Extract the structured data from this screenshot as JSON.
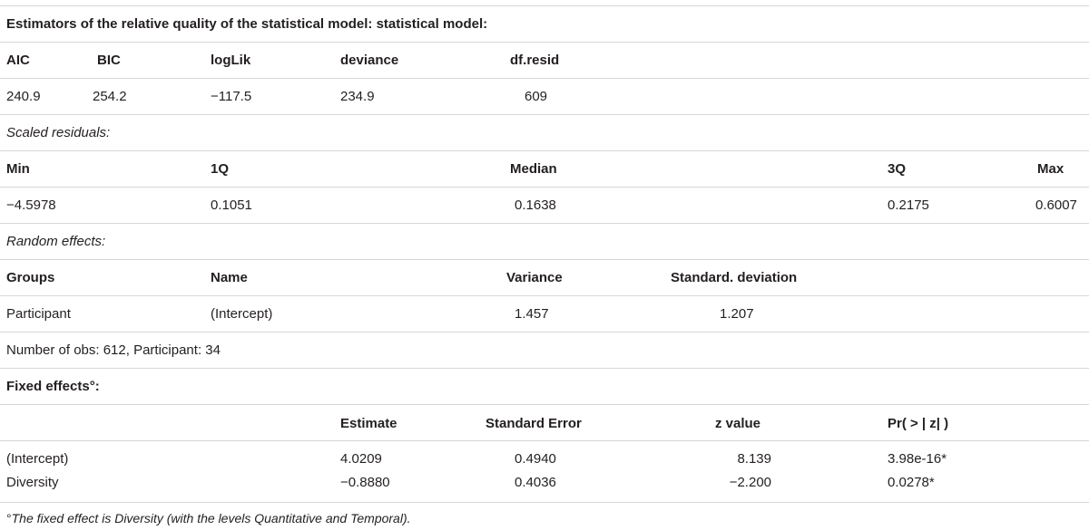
{
  "quality": {
    "title": "Estimators of the relative quality of the statistical model: statistical model:",
    "headers": [
      "AIC",
      "BIC",
      "logLik",
      "deviance",
      "df.resid"
    ],
    "values": [
      "240.9",
      "254.2",
      "−117.5",
      "234.9",
      "609"
    ]
  },
  "residuals": {
    "title": "Scaled residuals:",
    "headers": [
      "Min",
      "1Q",
      "Median",
      "3Q",
      "Max"
    ],
    "values": [
      "−4.5978",
      "0.1051",
      "0.1638",
      "0.2175",
      "0.6007"
    ]
  },
  "random": {
    "title": "Random effects:",
    "headers": [
      "Groups",
      "Name",
      "Variance",
      "Standard. deviation"
    ],
    "values": [
      "Participant",
      "(Intercept)",
      "1.457",
      "1.207"
    ],
    "obs_note": "Number of obs: 612, Participant: 34"
  },
  "fixed": {
    "title": "Fixed effects°:",
    "headers": [
      "Estimate",
      "Standard Error",
      "z value",
      "Pr( > | z| )"
    ],
    "rows": [
      [
        "(Intercept)",
        "4.0209",
        "0.4940",
        "8.139",
        "3.98e-16*"
      ],
      [
        "Diversity",
        "−0.8880",
        "0.4036",
        "−2.200",
        "0.0278*"
      ]
    ]
  },
  "footnote": {
    "mark": "°",
    "text": "The fixed effect is Diversity (with the levels Quantitative and Temporal)."
  }
}
